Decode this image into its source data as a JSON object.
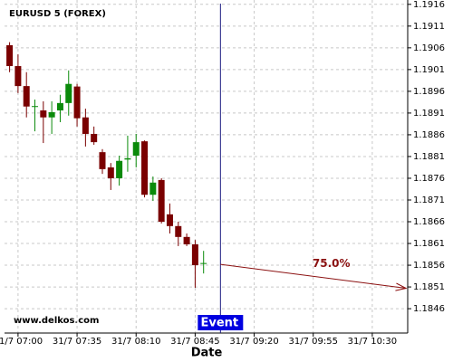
{
  "chart_data": {
    "type": "candlestick",
    "title": "EURUSD 5 (FOREX)",
    "watermark": "www.delkos.com",
    "xlabel": "Date",
    "x": [
      "31/7 06:55",
      "31/7 07:00",
      "31/7 07:05",
      "31/7 07:10",
      "31/7 07:15",
      "31/7 07:20",
      "31/7 07:25",
      "31/7 07:30",
      "31/7 07:35",
      "31/7 07:40",
      "31/7 07:45",
      "31/7 07:50",
      "31/7 07:55",
      "31/7 08:00",
      "31/7 08:05",
      "31/7 08:10",
      "31/7 08:15",
      "31/7 08:20",
      "31/7 08:25",
      "31/7 08:30",
      "31/7 08:35",
      "31/7 08:40",
      "31/7 08:45",
      "31/7 08:50"
    ],
    "open": [
      1.19066,
      1.19018,
      1.18972,
      1.18924,
      1.18916,
      1.189,
      1.18916,
      1.18933,
      1.18971,
      1.189,
      1.18862,
      1.1882,
      1.18785,
      1.1876,
      1.18803,
      1.18812,
      1.18845,
      1.18722,
      1.18756,
      1.18677,
      1.1865,
      1.18625,
      1.18608,
      1.18563
    ],
    "high": [
      1.19073,
      1.19045,
      1.19004,
      1.18941,
      1.18937,
      1.18937,
      1.18952,
      1.19008,
      1.18977,
      1.1892,
      1.18879,
      1.18827,
      1.18795,
      1.18812,
      1.18858,
      1.18862,
      1.18847,
      1.18764,
      1.1876,
      1.18702,
      1.1866,
      1.18633,
      1.18618,
      1.18593
    ],
    "low": [
      1.19004,
      1.18956,
      1.189,
      1.18868,
      1.18841,
      1.18862,
      1.18889,
      1.18904,
      1.18879,
      1.18833,
      1.18837,
      1.1877,
      1.18733,
      1.18743,
      1.18775,
      1.18785,
      1.18716,
      1.18708,
      1.18656,
      1.18633,
      1.18604,
      1.18604,
      1.18508,
      1.18541
    ],
    "close": [
      1.19018,
      1.18972,
      1.18925,
      1.18926,
      1.189,
      1.18912,
      1.18933,
      1.18977,
      1.18898,
      1.18862,
      1.18843,
      1.18781,
      1.1876,
      1.188,
      1.18806,
      1.18843,
      1.18722,
      1.1875,
      1.1866,
      1.1865,
      1.18625,
      1.18608,
      1.1856,
      1.18565
    ],
    "up_color": "#0a8a0a",
    "down_color": "#7a0000",
    "xlim": [
      "31/7 06:52",
      "31/7 10:51"
    ],
    "xticks": [
      "31/7 07:00",
      "31/7 07:35",
      "31/7 08:10",
      "31/7 08:45",
      "31/7 09:20",
      "31/7 09:55",
      "31/7 10:30"
    ],
    "ylim": [
      1.18404,
      1.1917
    ],
    "yticks": [
      1.1846,
      1.1851,
      1.1856,
      1.1861,
      1.1866,
      1.1871,
      1.1876,
      1.1881,
      1.1886,
      1.1891,
      1.1896,
      1.1901,
      1.1906,
      1.1911,
      1.1916
    ],
    "grid": true,
    "event": {
      "x": "31/7 09:00",
      "label": "Event",
      "color": "#0000e0"
    },
    "forecast": {
      "x": [
        "31/7 09:00",
        "31/7 10:50"
      ],
      "y": [
        1.18562,
        1.18507
      ],
      "label": "75.0%",
      "color": "#8b1010"
    }
  }
}
